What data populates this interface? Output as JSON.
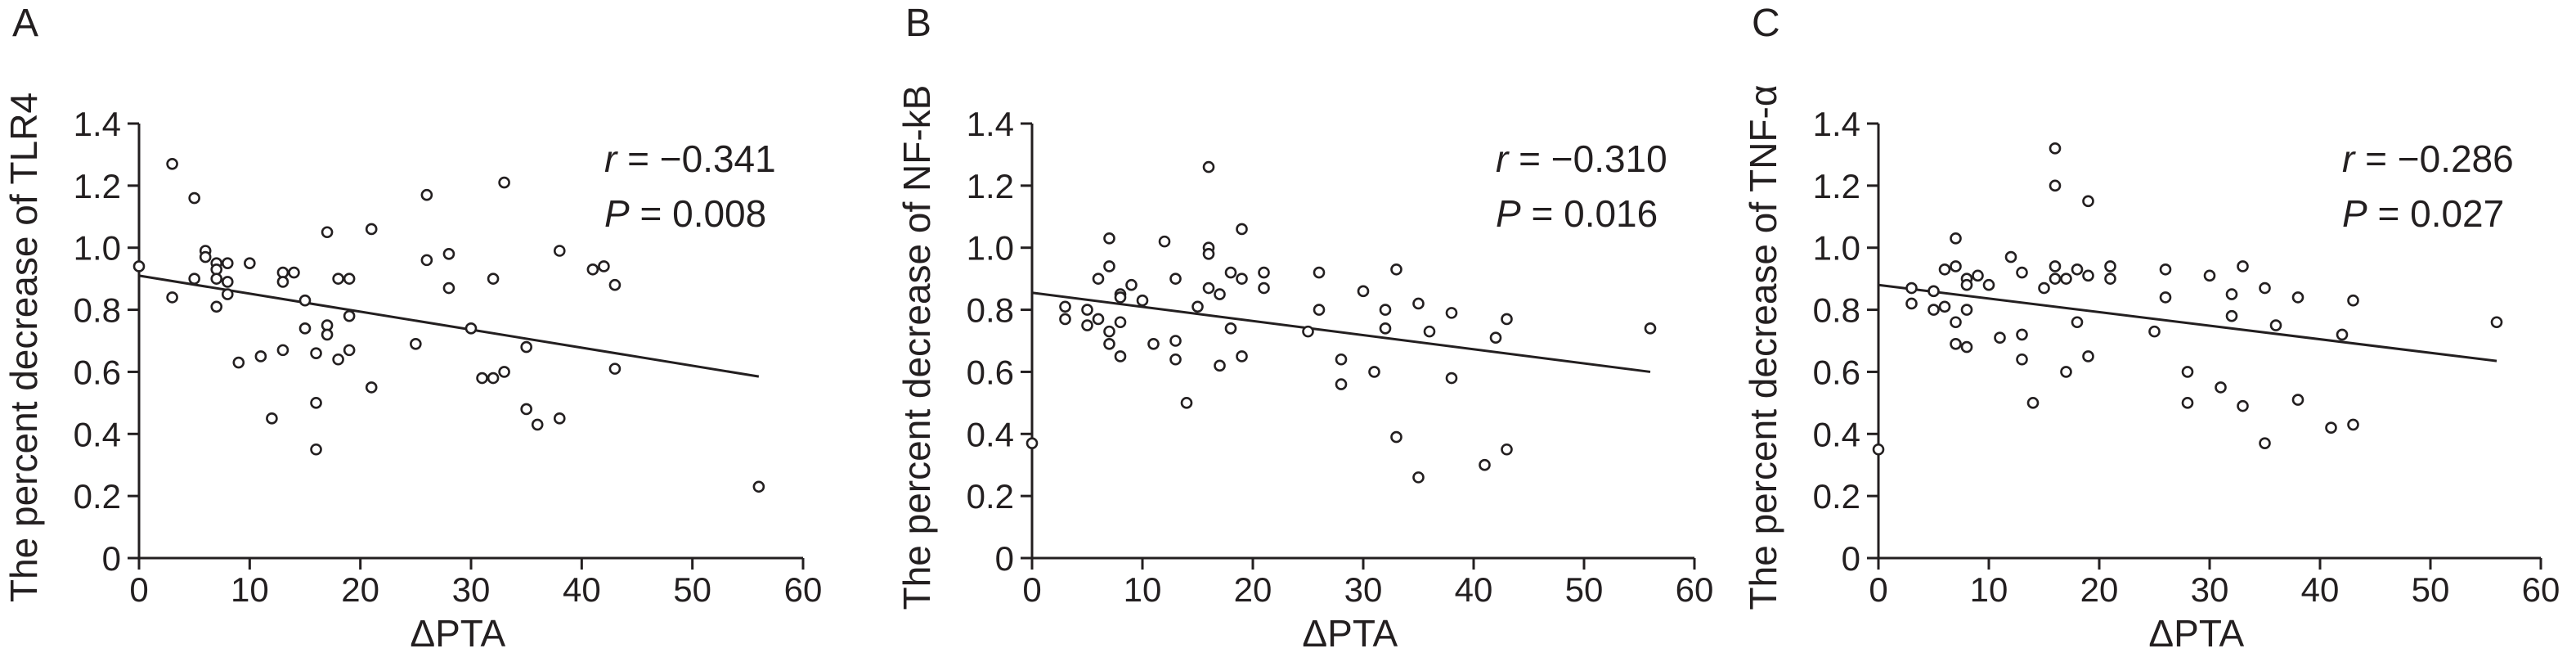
{
  "colors": {
    "ink": "#231f20",
    "background": "#ffffff"
  },
  "chart_data": [
    {
      "panel": "A",
      "type": "scatter",
      "xlabel": "ΔPTA",
      "ylabel": "The percent decrease of TLR4",
      "xlim": [
        0,
        60
      ],
      "ylim": [
        0,
        1.4
      ],
      "xticks": [
        "0",
        "10",
        "20",
        "30",
        "40",
        "50",
        "60"
      ],
      "yticks": [
        "0",
        "0.2",
        "0.4",
        "0.6",
        "0.8",
        "1.0",
        "1.2",
        "1.4"
      ],
      "grid": false,
      "stat": {
        "r_symbol": "r",
        "r_text": " = −0.341",
        "p_symbol": "P",
        "p_text": " = 0.008"
      },
      "regression_line": {
        "x": [
          0,
          56
        ],
        "y": [
          0.91,
          0.585
        ]
      },
      "points": [
        [
          0,
          0.94
        ],
        [
          3,
          0.84
        ],
        [
          3,
          1.27
        ],
        [
          5,
          1.16
        ],
        [
          5,
          0.9
        ],
        [
          6,
          0.99
        ],
        [
          6,
          0.97
        ],
        [
          7,
          0.95
        ],
        [
          7,
          0.93
        ],
        [
          7,
          0.9
        ],
        [
          7,
          0.81
        ],
        [
          8,
          0.95
        ],
        [
          8,
          0.89
        ],
        [
          8,
          0.85
        ],
        [
          9,
          0.63
        ],
        [
          10,
          0.95
        ],
        [
          11,
          0.65
        ],
        [
          12,
          0.45
        ],
        [
          13,
          0.92
        ],
        [
          13,
          0.89
        ],
        [
          13,
          0.67
        ],
        [
          14,
          0.92
        ],
        [
          15,
          0.83
        ],
        [
          15,
          0.74
        ],
        [
          16,
          0.66
        ],
        [
          16,
          0.5
        ],
        [
          16,
          0.35
        ],
        [
          17,
          1.05
        ],
        [
          17,
          0.75
        ],
        [
          17,
          0.72
        ],
        [
          18,
          0.9
        ],
        [
          18,
          0.64
        ],
        [
          19,
          0.9
        ],
        [
          19,
          0.78
        ],
        [
          19,
          0.67
        ],
        [
          21,
          1.06
        ],
        [
          21,
          0.55
        ],
        [
          25,
          0.69
        ],
        [
          26,
          1.17
        ],
        [
          26,
          0.96
        ],
        [
          28,
          0.98
        ],
        [
          28,
          0.87
        ],
        [
          30,
          0.74
        ],
        [
          31,
          0.58
        ],
        [
          32,
          0.58
        ],
        [
          32,
          0.9
        ],
        [
          33,
          1.21
        ],
        [
          33,
          0.6
        ],
        [
          35,
          0.68
        ],
        [
          35,
          0.48
        ],
        [
          36,
          0.43
        ],
        [
          38,
          0.99
        ],
        [
          38,
          0.45
        ],
        [
          41,
          0.93
        ],
        [
          42,
          0.94
        ],
        [
          43,
          0.88
        ],
        [
          43,
          0.61
        ],
        [
          56,
          0.23
        ]
      ]
    },
    {
      "panel": "B",
      "type": "scatter",
      "xlabel": "ΔPTA",
      "ylabel": "The percent decrease of NF-kB",
      "xlim": [
        0,
        60
      ],
      "ylim": [
        0,
        1.4
      ],
      "xticks": [
        "0",
        "10",
        "20",
        "30",
        "40",
        "50",
        "60"
      ],
      "yticks": [
        "0",
        "0.2",
        "0.4",
        "0.6",
        "0.8",
        "1.0",
        "1.2",
        "1.4"
      ],
      "grid": false,
      "stat": {
        "r_symbol": "r",
        "r_text": " = −0.310",
        "p_symbol": "P",
        "p_text": " = 0.016"
      },
      "regression_line": {
        "x": [
          0,
          56
        ],
        "y": [
          0.855,
          0.6
        ]
      },
      "points": [
        [
          0,
          0.37
        ],
        [
          3,
          0.81
        ],
        [
          3,
          0.77
        ],
        [
          5,
          0.8
        ],
        [
          5,
          0.75
        ],
        [
          6,
          0.9
        ],
        [
          6,
          0.77
        ],
        [
          7,
          1.03
        ],
        [
          7,
          0.94
        ],
        [
          7,
          0.73
        ],
        [
          7,
          0.69
        ],
        [
          8,
          0.85
        ],
        [
          8,
          0.84
        ],
        [
          8,
          0.76
        ],
        [
          8,
          0.65
        ],
        [
          9,
          0.88
        ],
        [
          10,
          0.83
        ],
        [
          11,
          0.69
        ],
        [
          12,
          1.02
        ],
        [
          13,
          0.9
        ],
        [
          13,
          0.7
        ],
        [
          13,
          0.64
        ],
        [
          14,
          0.5
        ],
        [
          15,
          0.81
        ],
        [
          16,
          1.26
        ],
        [
          16,
          1.0
        ],
        [
          16,
          0.98
        ],
        [
          16,
          0.87
        ],
        [
          17,
          0.85
        ],
        [
          17,
          0.62
        ],
        [
          18,
          0.92
        ],
        [
          18,
          0.74
        ],
        [
          19,
          1.06
        ],
        [
          19,
          0.9
        ],
        [
          19,
          0.65
        ],
        [
          21,
          0.92
        ],
        [
          21,
          0.87
        ],
        [
          25,
          0.73
        ],
        [
          26,
          0.92
        ],
        [
          26,
          0.8
        ],
        [
          28,
          0.64
        ],
        [
          28,
          0.56
        ],
        [
          30,
          0.86
        ],
        [
          31,
          0.6
        ],
        [
          32,
          0.8
        ],
        [
          32,
          0.74
        ],
        [
          33,
          0.93
        ],
        [
          33,
          0.39
        ],
        [
          35,
          0.82
        ],
        [
          35,
          0.26
        ],
        [
          36,
          0.73
        ],
        [
          38,
          0.79
        ],
        [
          38,
          0.58
        ],
        [
          41,
          0.3
        ],
        [
          42,
          0.71
        ],
        [
          43,
          0.77
        ],
        [
          43,
          0.35
        ],
        [
          56,
          0.74
        ]
      ]
    },
    {
      "panel": "C",
      "type": "scatter",
      "xlabel": "ΔPTA",
      "ylabel": "The percent decrease of TNF-α",
      "xlim": [
        0,
        60
      ],
      "ylim": [
        0,
        1.4
      ],
      "xticks": [
        "0",
        "10",
        "20",
        "30",
        "40",
        "50",
        "60"
      ],
      "yticks": [
        "0",
        "0.2",
        "0.4",
        "0.6",
        "0.8",
        "1.0",
        "1.2",
        "1.4"
      ],
      "grid": false,
      "stat": {
        "r_symbol": "r",
        "r_text": " = −0.286",
        "p_symbol": "P",
        "p_text": " = 0.027"
      },
      "regression_line": {
        "x": [
          0,
          56
        ],
        "y": [
          0.88,
          0.635
        ]
      },
      "points": [
        [
          0,
          0.35
        ],
        [
          3,
          0.87
        ],
        [
          3,
          0.82
        ],
        [
          5,
          0.86
        ],
        [
          5,
          0.8
        ],
        [
          6,
          0.93
        ],
        [
          6,
          0.81
        ],
        [
          7,
          1.03
        ],
        [
          7,
          0.94
        ],
        [
          7,
          0.76
        ],
        [
          7,
          0.69
        ],
        [
          8,
          0.9
        ],
        [
          8,
          0.88
        ],
        [
          8,
          0.8
        ],
        [
          8,
          0.68
        ],
        [
          9,
          0.91
        ],
        [
          10,
          0.88
        ],
        [
          11,
          0.71
        ],
        [
          12,
          0.97
        ],
        [
          13,
          0.92
        ],
        [
          13,
          0.72
        ],
        [
          13,
          0.64
        ],
        [
          14,
          0.5
        ],
        [
          15,
          0.87
        ],
        [
          16,
          1.32
        ],
        [
          16,
          1.2
        ],
        [
          16,
          0.94
        ],
        [
          16,
          0.9
        ],
        [
          17,
          0.9
        ],
        [
          17,
          0.6
        ],
        [
          18,
          0.93
        ],
        [
          18,
          0.76
        ],
        [
          19,
          1.15
        ],
        [
          19,
          0.91
        ],
        [
          19,
          0.65
        ],
        [
          21,
          0.94
        ],
        [
          21,
          0.9
        ],
        [
          25,
          0.73
        ],
        [
          26,
          0.93
        ],
        [
          26,
          0.84
        ],
        [
          28,
          0.6
        ],
        [
          28,
          0.5
        ],
        [
          30,
          0.91
        ],
        [
          31,
          0.55
        ],
        [
          32,
          0.85
        ],
        [
          32,
          0.78
        ],
        [
          33,
          0.94
        ],
        [
          33,
          0.49
        ],
        [
          35,
          0.87
        ],
        [
          35,
          0.37
        ],
        [
          36,
          0.75
        ],
        [
          38,
          0.84
        ],
        [
          38,
          0.51
        ],
        [
          41,
          0.42
        ],
        [
          42,
          0.72
        ],
        [
          43,
          0.83
        ],
        [
          43,
          0.43
        ],
        [
          56,
          0.76
        ]
      ]
    }
  ]
}
